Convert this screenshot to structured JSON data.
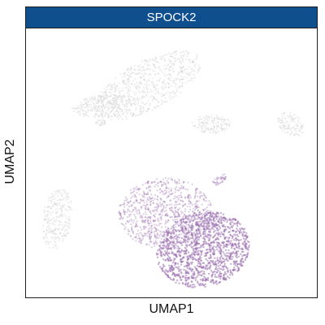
{
  "chart_data": {
    "type": "scatter",
    "title": "SPOCK2",
    "xlabel": "UMAP1",
    "ylabel": "UMAP2",
    "grid": false,
    "axis_ticks": "none",
    "legend": "none",
    "colors": {
      "strip_background": "#0f4f8e",
      "strip_text": "#ffffff",
      "low_expression": "#d9d9d9",
      "high_expression": "#9a6fb0"
    },
    "clusters": [
      {
        "expression": "low"
      },
      {
        "expression": "low"
      },
      {
        "expression": "low"
      },
      {
        "expression": "low"
      },
      {
        "expression": "low"
      },
      {
        "expression": "low"
      },
      {
        "expression": "medium"
      },
      {
        "expression": "high"
      },
      {
        "expression": "medium"
      }
    ]
  }
}
